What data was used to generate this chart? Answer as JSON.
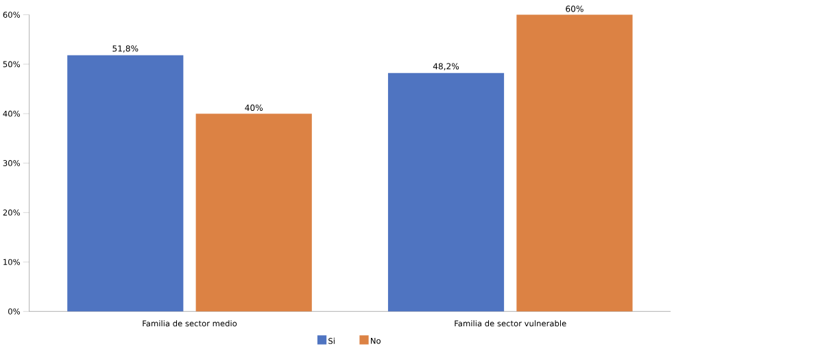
{
  "chart_data": {
    "type": "bar",
    "categories": [
      "Familia de sector medio",
      "Familia de sector vulnerable"
    ],
    "series": [
      {
        "name": "Si",
        "color": "#4f74c1",
        "values": [
          51.8,
          48.2
        ],
        "value_labels": [
          "51,8%",
          "48,2%"
        ]
      },
      {
        "name": "No",
        "color": "#dc8244",
        "values": [
          40,
          60
        ],
        "value_labels": [
          "40%",
          "60%"
        ]
      }
    ],
    "ylim": [
      0,
      60
    ],
    "yticks": [
      {
        "value": 0,
        "label": "0%"
      },
      {
        "value": 10,
        "label": "10%"
      },
      {
        "value": 20,
        "label": "20%"
      },
      {
        "value": 30,
        "label": "30%"
      },
      {
        "value": 40,
        "label": "40%"
      },
      {
        "value": 50,
        "label": "50%"
      },
      {
        "value": 60,
        "label": "60%"
      }
    ],
    "legend": "bottom"
  }
}
